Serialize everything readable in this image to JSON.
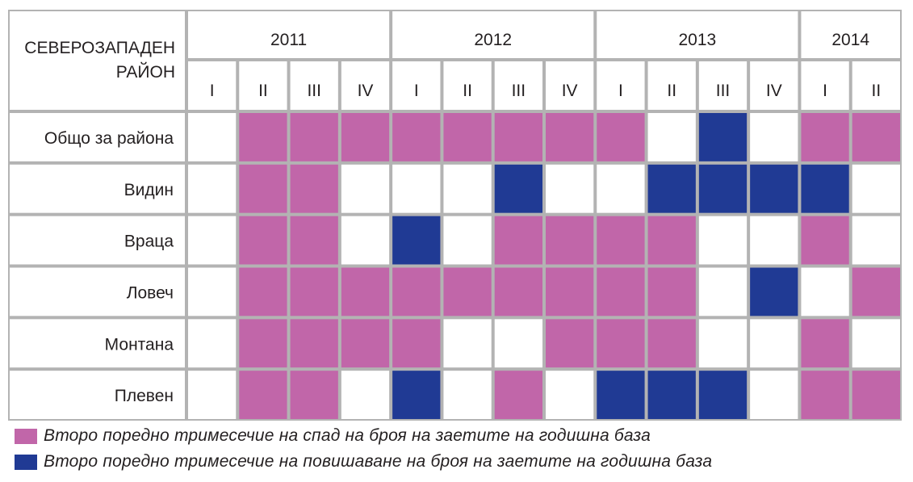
{
  "chart_data": {
    "type": "heatmap",
    "corner_label_lines": [
      "СЕВЕРОЗАПАДЕН",
      "РАЙОН"
    ],
    "years": [
      {
        "label": "2011",
        "quarters": [
          "I",
          "II",
          "III",
          "IV"
        ]
      },
      {
        "label": "2012",
        "quarters": [
          "I",
          "II",
          "III",
          "IV"
        ]
      },
      {
        "label": "2013",
        "quarters": [
          "I",
          "II",
          "III",
          "IV"
        ]
      },
      {
        "label": "2014",
        "quarters": [
          "I",
          "II"
        ]
      }
    ],
    "rows": [
      {
        "label": "Общо за района",
        "cells": [
          0,
          1,
          1,
          1,
          1,
          1,
          1,
          1,
          1,
          0,
          2,
          0,
          1,
          1
        ]
      },
      {
        "label": "Видин",
        "cells": [
          0,
          1,
          1,
          0,
          0,
          0,
          2,
          0,
          0,
          2,
          2,
          2,
          2,
          0
        ]
      },
      {
        "label": "Враца",
        "cells": [
          0,
          1,
          1,
          0,
          2,
          0,
          1,
          1,
          1,
          1,
          0,
          0,
          1,
          0
        ]
      },
      {
        "label": "Ловеч",
        "cells": [
          0,
          1,
          1,
          1,
          1,
          1,
          1,
          1,
          1,
          1,
          0,
          2,
          0,
          1
        ]
      },
      {
        "label": "Монтана",
        "cells": [
          0,
          1,
          1,
          1,
          1,
          0,
          0,
          1,
          1,
          1,
          0,
          0,
          1,
          0
        ]
      },
      {
        "label": "Плевен",
        "cells": [
          0,
          1,
          1,
          0,
          2,
          0,
          1,
          0,
          2,
          2,
          2,
          0,
          1,
          1
        ]
      }
    ],
    "legend": [
      {
        "code": 1,
        "label": "Второ поредно тримесечие на спад на броя на заетите на годишна база",
        "color": "#c166a9"
      },
      {
        "code": 2,
        "label": "Второ поредно тримесечие на повишаване на броя на заетите на годишна база",
        "color": "#203a94"
      }
    ],
    "colors": {
      "empty": "#ffffff",
      "grid": "#b3b3b3"
    }
  }
}
